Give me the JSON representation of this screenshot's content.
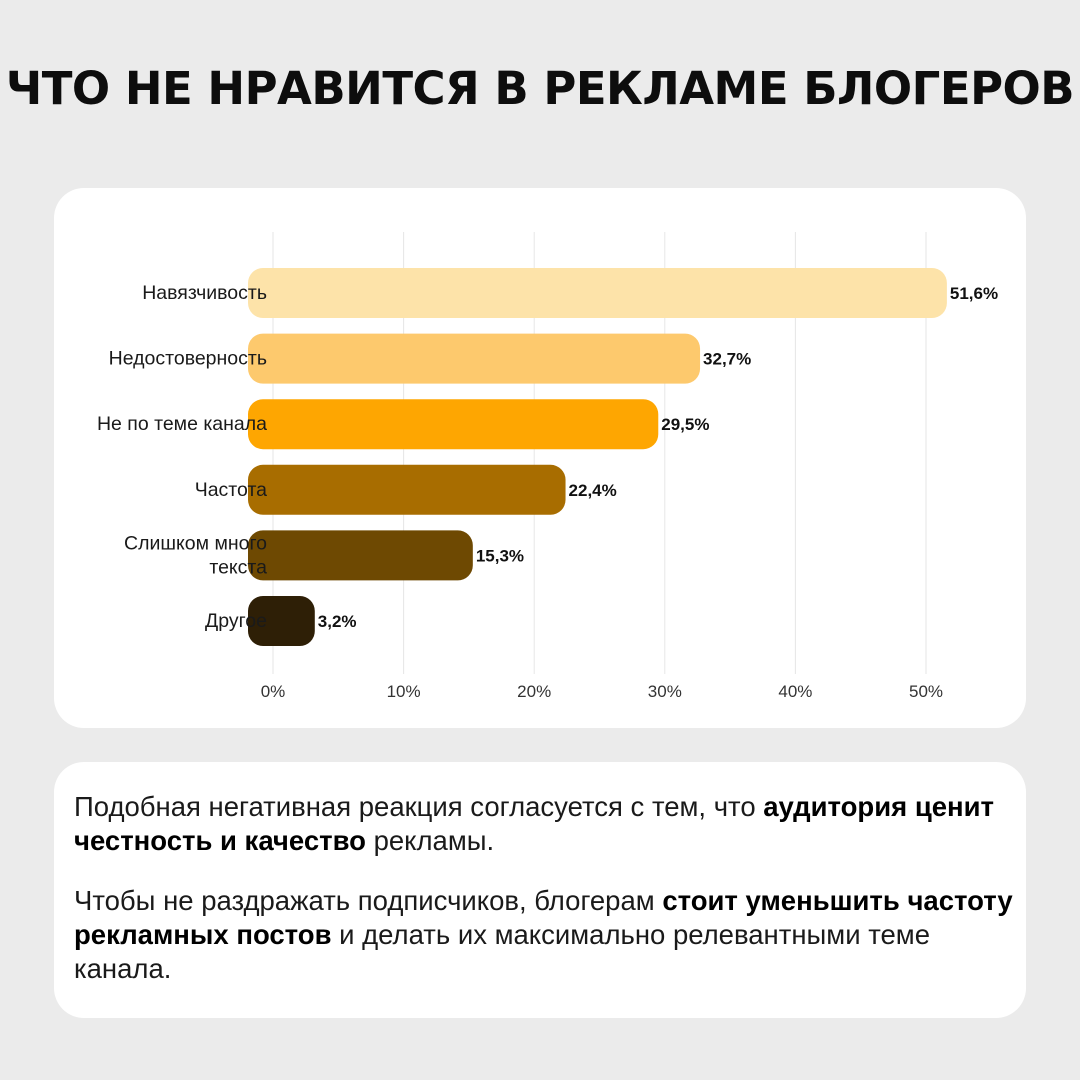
{
  "title": "ЧТО НЕ НРАВИТСЯ В РЕКЛАМЕ БЛОГЕРОВ",
  "chart_data": {
    "type": "bar",
    "orientation": "horizontal",
    "categories": [
      "Навязчивость",
      "Недостоверность",
      "Не по теме канала",
      "Частота",
      "Слишком много текста",
      "Другое"
    ],
    "category_lines": [
      [
        "Навязчивость"
      ],
      [
        "Недостоверность"
      ],
      [
        "Не по теме канала"
      ],
      [
        "Частота"
      ],
      [
        "Слишком много",
        "текста"
      ],
      [
        "Другое"
      ]
    ],
    "values": [
      51.6,
      32.7,
      29.5,
      22.4,
      15.3,
      3.2
    ],
    "value_labels": [
      "51,6%",
      "32,7%",
      "29,5%",
      "22,4%",
      "15,3%",
      "3,2%"
    ],
    "bar_colors": [
      "#fde3a9",
      "#fdc96d",
      "#fea601",
      "#a86d00",
      "#6e4902",
      "#2e1f06"
    ],
    "xlim": [
      0,
      52.5
    ],
    "xticks": [
      0,
      10,
      20,
      30,
      40,
      50
    ],
    "xtick_labels": [
      "0%",
      "10%",
      "20%",
      "30%",
      "40%",
      "50%"
    ],
    "grid": true,
    "title": "",
    "xlabel": "",
    "ylabel": ""
  },
  "text": {
    "p1_a": "Подобная негативная реакция согласуется с тем, что ",
    "p1_b": "аудитория ценит честность и качество",
    "p1_c": " рекламы.",
    "p2_a": "Чтобы не раздражать подписчиков, блогерам ",
    "p2_b": "стоит уменьшить частоту рекламных постов",
    "p2_c": " и делать их максимально релевантными теме канала."
  }
}
